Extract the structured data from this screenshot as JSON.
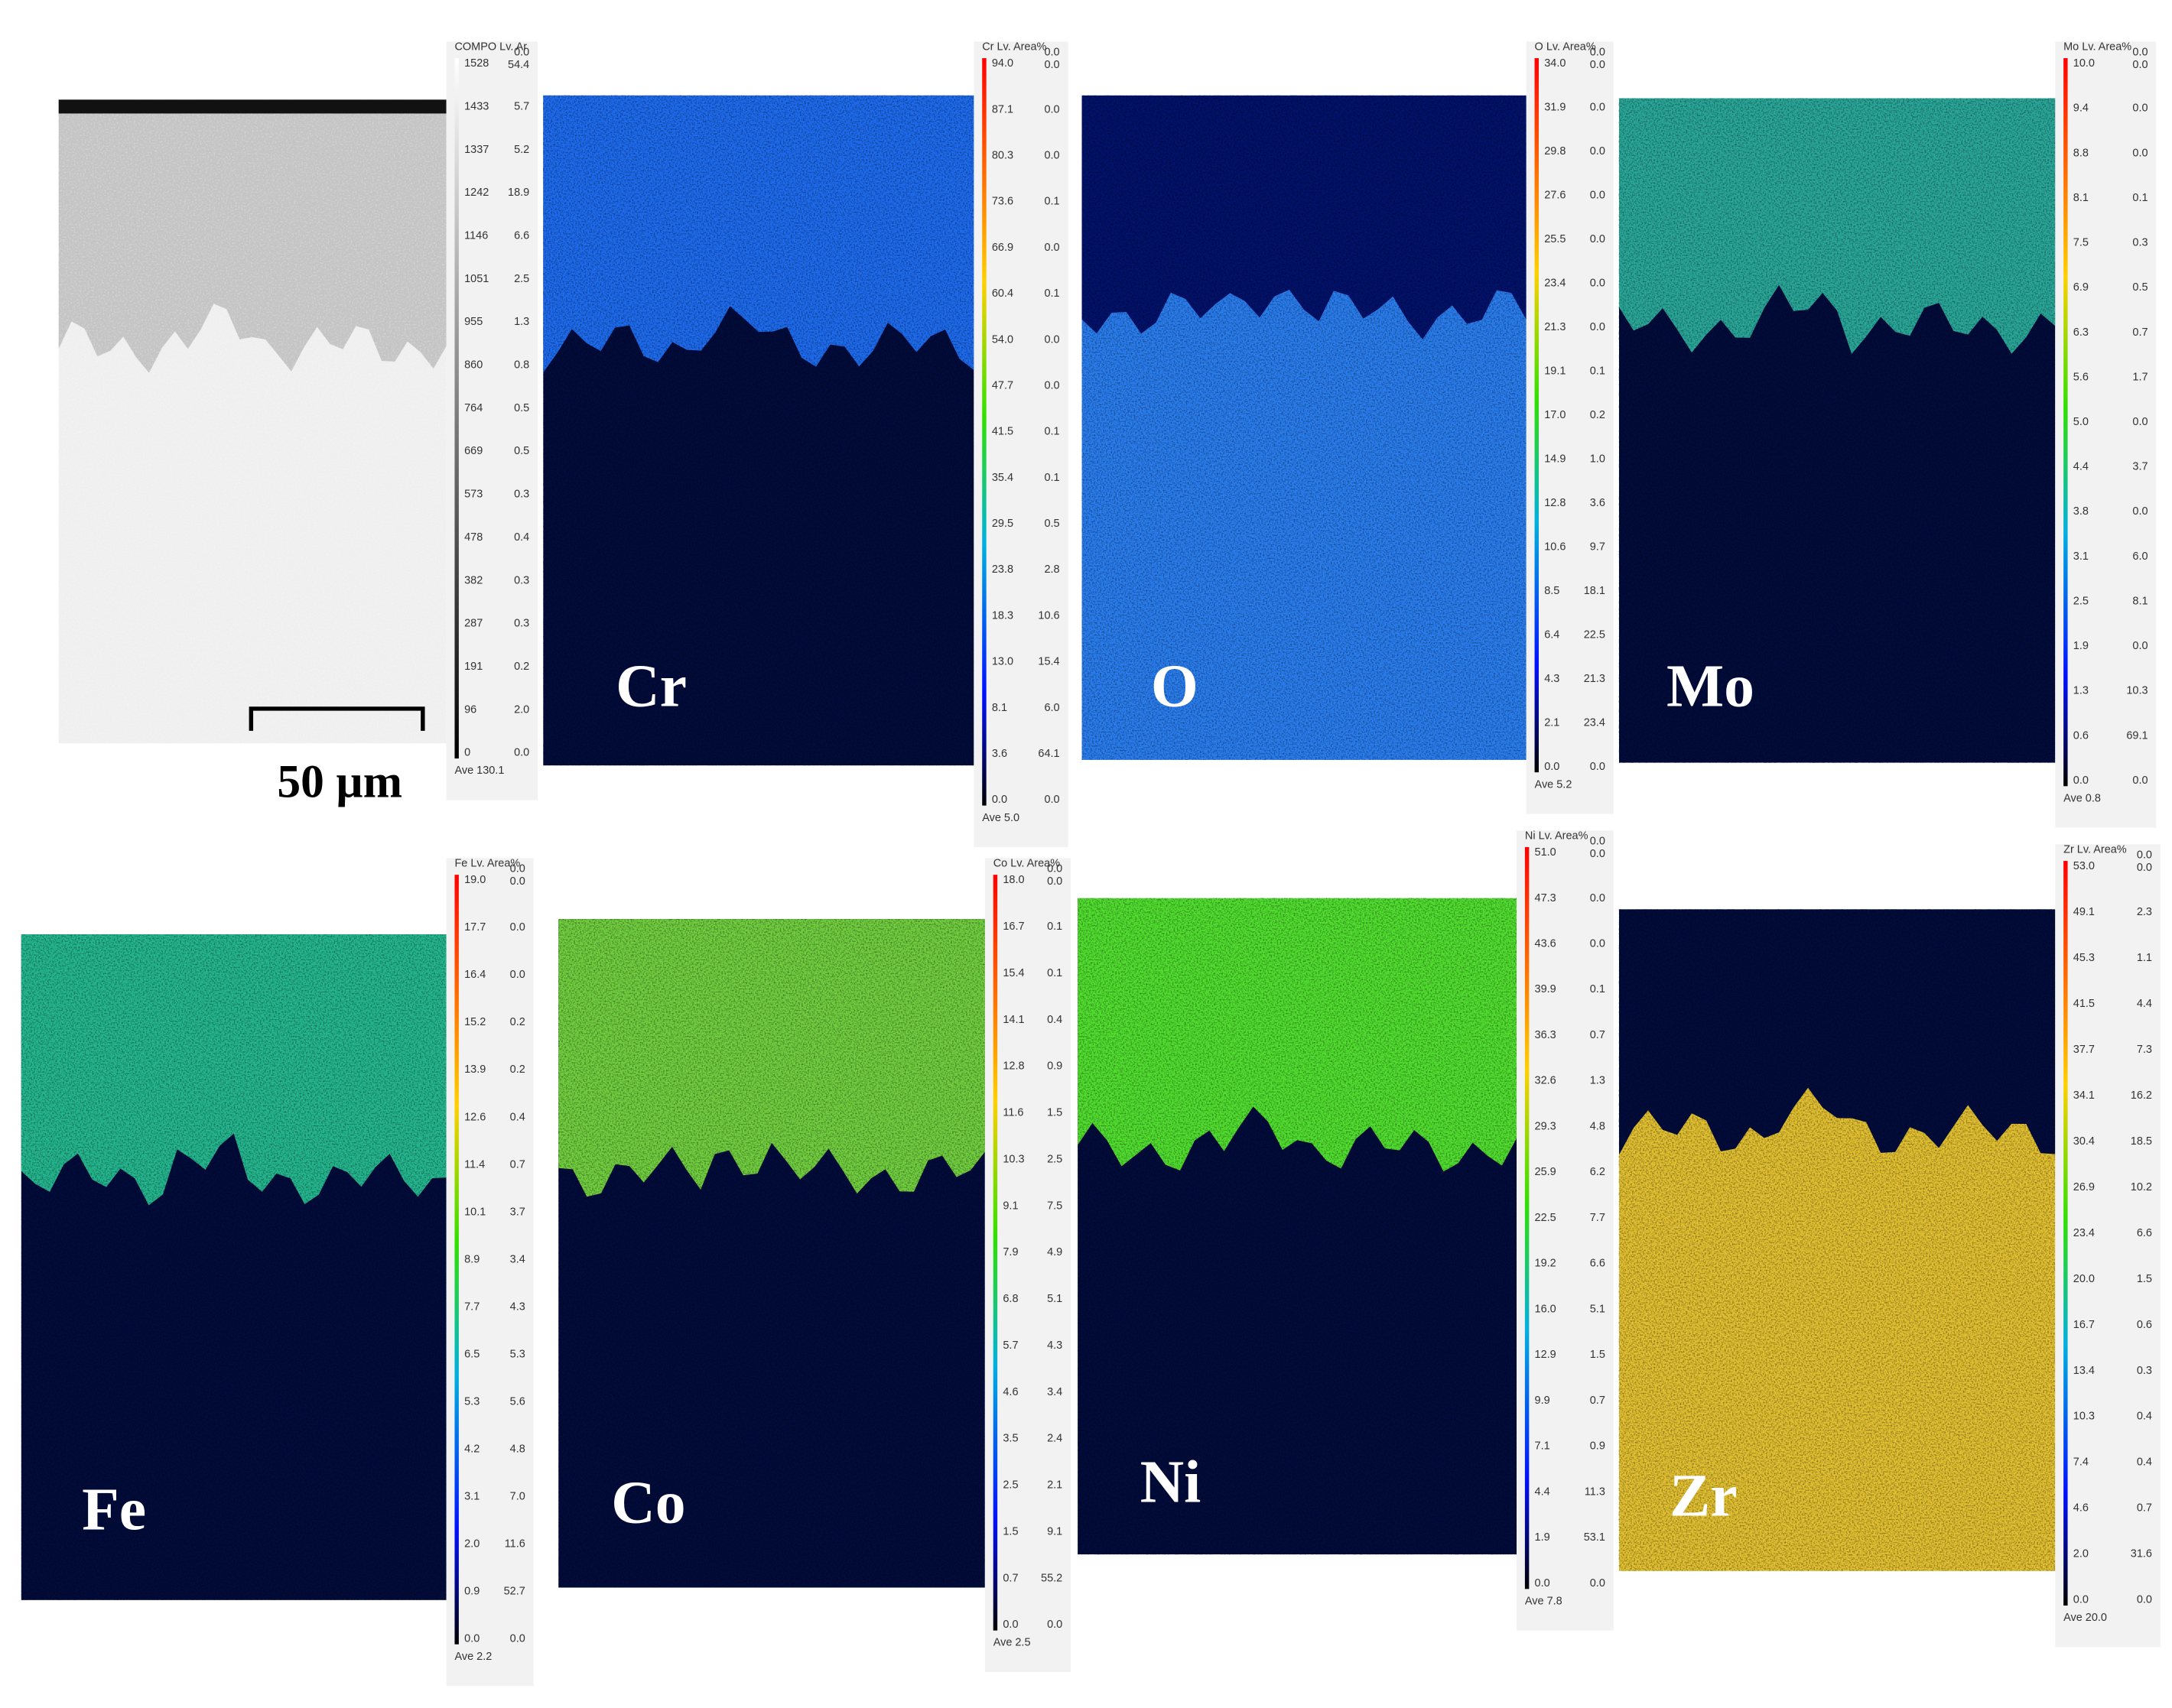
{
  "scale_bar": "50 µm",
  "panels": [
    {
      "header": "COMPO Lv. Ar",
      "levels": [
        "1528",
        "1433",
        "1337",
        "1242",
        "1146",
        "1051",
        "955",
        "860",
        "764",
        "669",
        "573",
        "478",
        "382",
        "287",
        "191",
        "96",
        "0"
      ],
      "areas": [
        "0.0",
        "54.4",
        "5.7",
        "5.2",
        "18.9",
        "6.6",
        "2.5",
        "1.3",
        "0.8",
        "0.5",
        "0.5",
        "0.3",
        "0.4",
        "0.3",
        "0.3",
        "0.2",
        "2.0",
        "0.0"
      ],
      "average": "Ave 130.1"
    },
    {
      "label": "Cr",
      "header": "Cr Lv. Area%",
      "levels": [
        "94.0",
        "87.1",
        "80.3",
        "73.6",
        "66.9",
        "60.4",
        "54.0",
        "47.7",
        "41.5",
        "35.4",
        "29.5",
        "23.8",
        "18.3",
        "13.0",
        "8.1",
        "3.6",
        "0.0"
      ],
      "areas": [
        "0.0",
        "0.0",
        "0.0",
        "0.0",
        "0.1",
        "0.0",
        "0.1",
        "0.0",
        "0.0",
        "0.1",
        "0.1",
        "0.5",
        "2.8",
        "10.6",
        "15.4",
        "6.0",
        "64.1",
        "0.0"
      ],
      "average": "Ave 5.0"
    },
    {
      "label": "O",
      "header": "O Lv. Area%",
      "levels": [
        "34.0",
        "31.9",
        "29.8",
        "27.6",
        "25.5",
        "23.4",
        "21.3",
        "19.1",
        "17.0",
        "14.9",
        "12.8",
        "10.6",
        "8.5",
        "6.4",
        "4.3",
        "2.1",
        "0.0"
      ],
      "areas": [
        "0.0",
        "0.0",
        "0.0",
        "0.0",
        "0.0",
        "0.0",
        "0.0",
        "0.0",
        "0.1",
        "0.2",
        "1.0",
        "3.6",
        "9.7",
        "18.1",
        "22.5",
        "21.3",
        "23.4",
        "0.0"
      ],
      "average": "Ave 5.2"
    },
    {
      "label": "Mo",
      "header": "Mo Lv. Area%",
      "levels": [
        "10.0",
        "9.4",
        "8.8",
        "8.1",
        "7.5",
        "6.9",
        "6.3",
        "5.6",
        "5.0",
        "4.4",
        "3.8",
        "3.1",
        "2.5",
        "1.9",
        "1.3",
        "0.6",
        "0.0"
      ],
      "areas": [
        "0.0",
        "0.0",
        "0.0",
        "0.0",
        "0.1",
        "0.3",
        "0.5",
        "0.7",
        "1.7",
        "0.0",
        "3.7",
        "0.0",
        "6.0",
        "8.1",
        "0.0",
        "10.3",
        "69.1",
        "0.0"
      ],
      "average": "Ave 0.8"
    },
    {
      "label": "Fe",
      "header": "Fe Lv. Area%",
      "levels": [
        "19.0",
        "17.7",
        "16.4",
        "15.2",
        "13.9",
        "12.6",
        "11.4",
        "10.1",
        "8.9",
        "7.7",
        "6.5",
        "5.3",
        "4.2",
        "3.1",
        "2.0",
        "0.9",
        "0.0"
      ],
      "areas": [
        "0.0",
        "0.0",
        "0.0",
        "0.0",
        "0.2",
        "0.2",
        "0.4",
        "0.7",
        "3.7",
        "3.4",
        "4.3",
        "5.3",
        "5.6",
        "4.8",
        "7.0",
        "11.6",
        "52.7",
        "0.0"
      ],
      "average": "Ave 2.2"
    },
    {
      "label": "Co",
      "header": "Co Lv. Area%",
      "levels": [
        "18.0",
        "16.7",
        "15.4",
        "14.1",
        "12.8",
        "11.6",
        "10.3",
        "9.1",
        "7.9",
        "6.8",
        "5.7",
        "4.6",
        "3.5",
        "2.5",
        "1.5",
        "0.7",
        "0.0"
      ],
      "areas": [
        "0.0",
        "0.0",
        "0.1",
        "0.1",
        "0.4",
        "0.9",
        "1.5",
        "2.5",
        "7.5",
        "4.9",
        "5.1",
        "4.3",
        "3.4",
        "2.4",
        "2.1",
        "9.1",
        "55.2",
        "0.0"
      ],
      "average": "Ave 2.5"
    },
    {
      "label": "Ni",
      "header": "Ni Lv. Area%",
      "levels": [
        "51.0",
        "47.3",
        "43.6",
        "39.9",
        "36.3",
        "32.6",
        "29.3",
        "25.9",
        "22.5",
        "19.2",
        "16.0",
        "12.9",
        "9.9",
        "7.1",
        "4.4",
        "1.9",
        "0.0"
      ],
      "areas": [
        "0.0",
        "0.0",
        "0.0",
        "0.0",
        "0.1",
        "0.7",
        "1.3",
        "4.8",
        "6.2",
        "7.7",
        "6.6",
        "5.1",
        "1.5",
        "0.7",
        "0.9",
        "11.3",
        "53.1",
        "0.0"
      ],
      "average": "Ave 7.8"
    },
    {
      "label": "Zr",
      "header": "Zr Lv. Area%",
      "levels": [
        "53.0",
        "49.1",
        "45.3",
        "41.5",
        "37.7",
        "34.1",
        "30.4",
        "26.9",
        "23.4",
        "20.0",
        "16.7",
        "13.4",
        "10.3",
        "7.4",
        "4.6",
        "2.0",
        "0.0"
      ],
      "areas": [
        "0.0",
        "0.0",
        "2.3",
        "1.1",
        "4.4",
        "7.3",
        "16.2",
        "18.5",
        "10.2",
        "6.6",
        "1.5",
        "0.6",
        "0.3",
        "0.4",
        "0.4",
        "0.7",
        "31.6",
        "0.0"
      ],
      "average": "Ave 20.0"
    }
  ]
}
